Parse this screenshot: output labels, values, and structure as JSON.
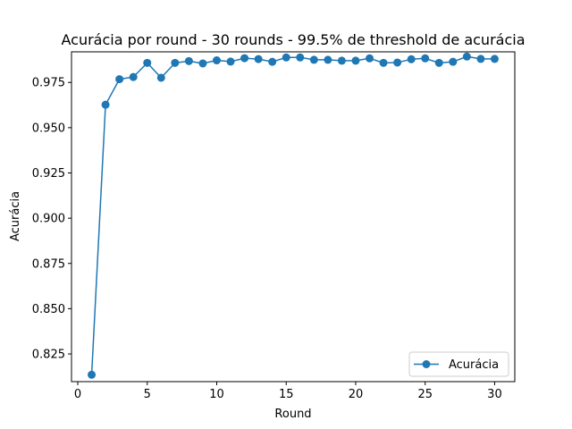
{
  "chart_data": {
    "type": "line",
    "title": "Acurácia por round - 30 rounds - 99.5% de threshold de acurácia",
    "xlabel": "Round",
    "ylabel": "Acurácia",
    "xlim": [
      -0.45,
      31.45
    ],
    "ylim": [
      0.8097,
      0.9919
    ],
    "xticks": [
      0,
      5,
      10,
      15,
      20,
      25,
      30
    ],
    "xtick_labels": [
      "0",
      "5",
      "10",
      "15",
      "20",
      "25",
      "30"
    ],
    "yticks": [
      0.825,
      0.85,
      0.875,
      0.9,
      0.925,
      0.95,
      0.975
    ],
    "ytick_labels": [
      "0.825",
      "0.850",
      "0.875",
      "0.900",
      "0.925",
      "0.950",
      "0.975"
    ],
    "grid": false,
    "legend_position": "lower-right",
    "series": [
      {
        "name": "Acurácia",
        "color": "#1f77b4",
        "marker": "circle",
        "x": [
          1,
          2,
          3,
          4,
          5,
          6,
          7,
          8,
          9,
          10,
          11,
          12,
          13,
          14,
          15,
          16,
          17,
          18,
          19,
          20,
          21,
          22,
          23,
          24,
          25,
          26,
          27,
          28,
          29,
          30
        ],
        "values": [
          0.8135,
          0.9627,
          0.9768,
          0.978,
          0.9858,
          0.9776,
          0.9858,
          0.9868,
          0.9855,
          0.9872,
          0.9865,
          0.9884,
          0.9879,
          0.9864,
          0.9888,
          0.9888,
          0.9875,
          0.9875,
          0.987,
          0.987,
          0.9883,
          0.9858,
          0.986,
          0.9878,
          0.9883,
          0.9858,
          0.9864,
          0.9893,
          0.988,
          0.988
        ]
      }
    ]
  }
}
